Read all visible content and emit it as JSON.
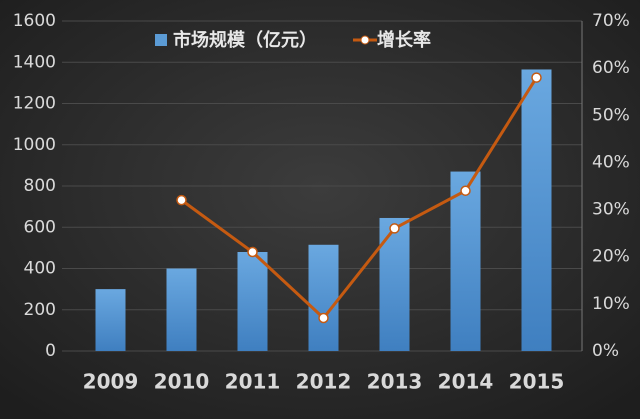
{
  "chart_data": {
    "type": "bar-line",
    "categories": [
      "2009",
      "2010",
      "2011",
      "2012",
      "2013",
      "2014",
      "2015"
    ],
    "series": [
      {
        "name": "市场规模（亿元）",
        "color": "#5b9bd5",
        "type": "bar",
        "values": [
          300,
          400,
          480,
          515,
          645,
          870,
          1365
        ]
      },
      {
        "name": "增长率",
        "color": "#c55a11",
        "type": "line",
        "axis": "y2",
        "values": [
          null,
          32,
          21,
          7,
          26,
          34,
          58
        ]
      }
    ],
    "ylim": [
      0,
      1600
    ],
    "yticks": [
      0,
      200,
      400,
      600,
      800,
      1000,
      1200,
      1400,
      1600
    ],
    "y2lim": [
      0,
      70
    ],
    "y2ticks": [
      {
        "value": 0,
        "label": "0%"
      },
      {
        "value": 10,
        "label": "10%"
      },
      {
        "value": 20,
        "label": "20%"
      },
      {
        "value": 30,
        "label": "30%"
      },
      {
        "value": 40,
        "label": "40%"
      },
      {
        "value": 50,
        "label": "50%"
      },
      {
        "value": 60,
        "label": "60%"
      },
      {
        "value": 70,
        "label": "70%"
      }
    ],
    "grid": true
  }
}
